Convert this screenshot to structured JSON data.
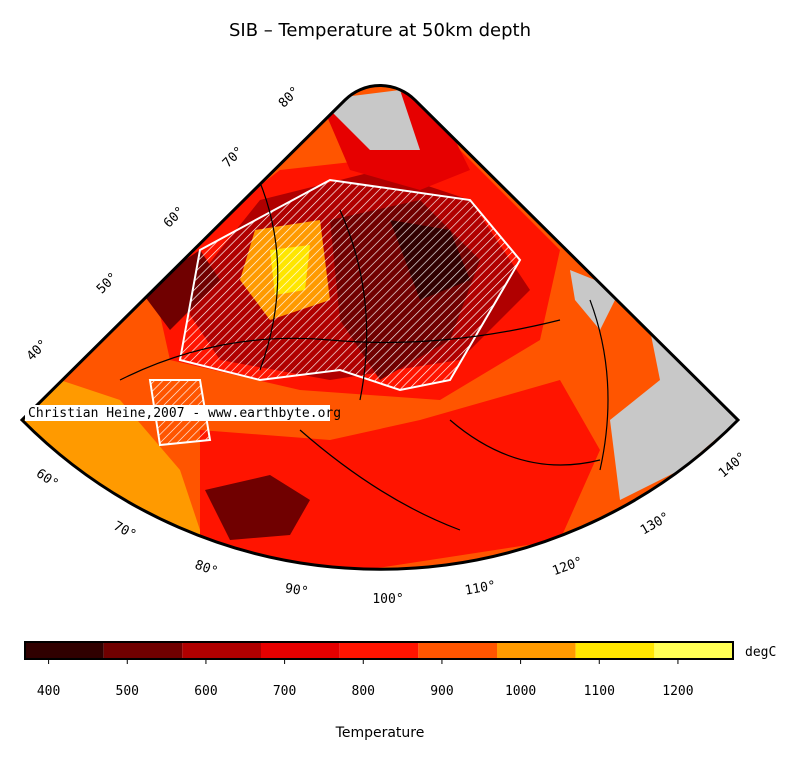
{
  "title": "SIB – Temperature at 50km depth",
  "map": {
    "latitude_labels": [
      "80°",
      "70°",
      "60°",
      "50°",
      "40°"
    ],
    "longitude_labels": [
      "60°",
      "70°",
      "80°",
      "90°",
      "100°",
      "110°",
      "120°",
      "130°",
      "140°"
    ],
    "watermark": "Christian Heine,2007 - www.earthbyte.org"
  },
  "colorbar": {
    "bins": [
      370,
      470,
      570,
      670,
      770,
      870,
      970,
      1070,
      1170,
      1270
    ],
    "colors": [
      "#300000",
      "#700000",
      "#b00000",
      "#e60000",
      "#ff1400",
      "#ff5500",
      "#ff9a00",
      "#ffe600",
      "#ffff55",
      "#ffffc4"
    ],
    "ticks": [
      400,
      500,
      600,
      700,
      800,
      900,
      1000,
      1100,
      1200
    ],
    "unit": "degC",
    "label": "Temperature"
  }
}
